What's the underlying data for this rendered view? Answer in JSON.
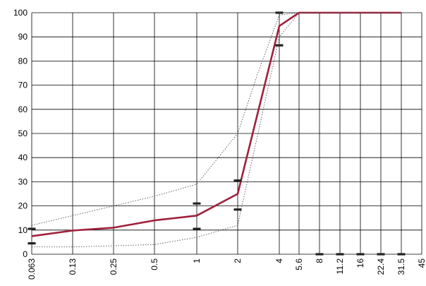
{
  "chart_data": {
    "type": "line",
    "title": "",
    "xlabel": "",
    "ylabel": "",
    "ylim": [
      0,
      100
    ],
    "y_ticks": [
      0,
      10,
      20,
      30,
      40,
      50,
      60,
      70,
      80,
      90,
      100
    ],
    "x_scale": "log",
    "x_ticks": [
      {
        "label": "0.063",
        "value": 0.063
      },
      {
        "label": "0.13",
        "value": 0.13
      },
      {
        "label": "0.25",
        "value": 0.25
      },
      {
        "label": "0.5",
        "value": 0.5
      },
      {
        "label": "1",
        "value": 1
      },
      {
        "label": "2",
        "value": 2
      },
      {
        "label": "4",
        "value": 4
      },
      {
        "label": "5.6",
        "value": 5.6
      },
      {
        "label": "8",
        "value": 8
      },
      {
        "label": "11.2",
        "value": 11.2
      },
      {
        "label": "16",
        "value": 16
      },
      {
        "label": "22.4",
        "value": 22.4
      },
      {
        "label": "31.5",
        "value": 31.5
      },
      {
        "label": "45",
        "value": 45
      }
    ],
    "grid": true,
    "series": [
      {
        "role": "grading-curve",
        "color": "#a0203c",
        "style": "solid",
        "x": [
          0.063,
          0.13,
          0.25,
          0.5,
          1,
          2,
          4,
          5.6,
          8,
          11.2,
          16,
          22.4,
          31.5
        ],
        "y": [
          7.5,
          9.8,
          11,
          14,
          16,
          25,
          94.5,
          100,
          100,
          100,
          100,
          100,
          100
        ]
      },
      {
        "role": "upper-envelope",
        "color": "#555555",
        "style": "dotted",
        "x": [
          0.063,
          0.13,
          0.25,
          0.5,
          1,
          2,
          2.8,
          4,
          5.6,
          8,
          11.2,
          16,
          22.4,
          31.5
        ],
        "y": [
          12,
          16,
          20,
          24,
          29,
          50,
          75,
          99,
          100,
          100,
          100,
          100,
          100,
          100
        ]
      },
      {
        "role": "lower-envelope",
        "color": "#555555",
        "style": "dotted",
        "x": [
          0.063,
          0.13,
          0.25,
          0.5,
          1,
          2,
          4,
          5.6,
          8,
          11.2,
          16,
          22.4,
          31.5
        ],
        "y": [
          3,
          3,
          3.5,
          4,
          7,
          12,
          90,
          100,
          100,
          100,
          100,
          100,
          100
        ]
      }
    ],
    "limit_markers": [
      {
        "x": 0.063,
        "y": 10.5
      },
      {
        "x": 0.063,
        "y": 4.5
      },
      {
        "x": 1,
        "y": 21
      },
      {
        "x": 1,
        "y": 10.5
      },
      {
        "x": 2,
        "y": 30.5
      },
      {
        "x": 2,
        "y": 18.5
      },
      {
        "x": 4,
        "y": 100
      },
      {
        "x": 4,
        "y": 86.5
      },
      {
        "x": 8,
        "y": 0
      },
      {
        "x": 11.2,
        "y": 0
      },
      {
        "x": 16,
        "y": 0
      },
      {
        "x": 22.4,
        "y": 0
      },
      {
        "x": 31.5,
        "y": 0
      }
    ],
    "marker_color": "#222222",
    "grid_color": "#000000"
  }
}
